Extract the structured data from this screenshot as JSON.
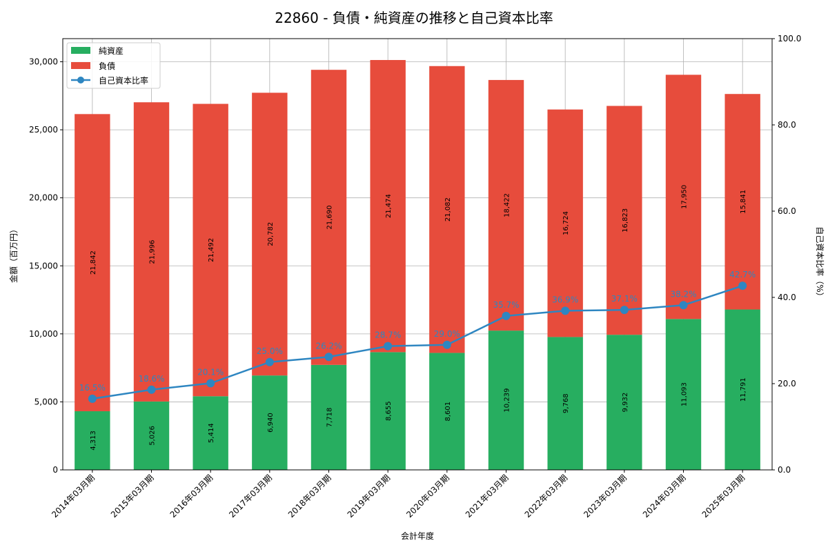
{
  "chart_data": {
    "type": "bar",
    "title": "22860 - 負債・純資産の推移と自己資本比率",
    "xlabel": "会計年度",
    "ylabel": "金額（百万円）",
    "y2label": "自己資本比率（%）",
    "ylim": [
      0,
      31700
    ],
    "y2lim": [
      0,
      100
    ],
    "yticks": [
      0,
      5000,
      10000,
      15000,
      20000,
      25000,
      30000
    ],
    "y2ticks": [
      0,
      20,
      40,
      60,
      80,
      100
    ],
    "categories": [
      "2014年03月期",
      "2015年03月期",
      "2016年03月期",
      "2017年03月期",
      "2018年03月期",
      "2019年03月期",
      "2020年03月期",
      "2021年03月期",
      "2022年03月期",
      "2023年03月期",
      "2024年03月期",
      "2025年03月期"
    ],
    "series": [
      {
        "name": "純資産",
        "kind": "bar",
        "color": "#27ae60",
        "values": [
          4313,
          5026,
          5414,
          6940,
          7718,
          8655,
          8601,
          10239,
          9768,
          9932,
          11093,
          11791
        ],
        "labels": [
          "4,313",
          "5,026",
          "5,414",
          "6,940",
          "7,718",
          "8,655",
          "8,601",
          "10,239",
          "9,768",
          "9,932",
          "11,093",
          "11,791"
        ]
      },
      {
        "name": "負債",
        "kind": "bar",
        "color": "#e74c3c",
        "values": [
          21842,
          21996,
          21492,
          20782,
          21690,
          21474,
          21082,
          18422,
          16724,
          16823,
          17950,
          15841
        ],
        "labels": [
          "21,842",
          "21,996",
          "21,492",
          "20,782",
          "21,690",
          "21,474",
          "21,082",
          "18,422",
          "16,724",
          "16,823",
          "17,950",
          "15,841"
        ]
      },
      {
        "name": "自己資本比率",
        "kind": "line",
        "axis": "right",
        "color": "#2e86c1",
        "values": [
          16.5,
          18.6,
          20.1,
          25.0,
          26.2,
          28.7,
          29.0,
          35.7,
          36.9,
          37.1,
          38.2,
          42.7
        ],
        "labels": [
          "16.5%",
          "18.6%",
          "20.1%",
          "25.0%",
          "26.2%",
          "28.7%",
          "29.0%",
          "35.7%",
          "36.9%",
          "37.1%",
          "38.2%",
          "42.7%"
        ]
      }
    ],
    "grid": true,
    "legend": "top-left"
  }
}
